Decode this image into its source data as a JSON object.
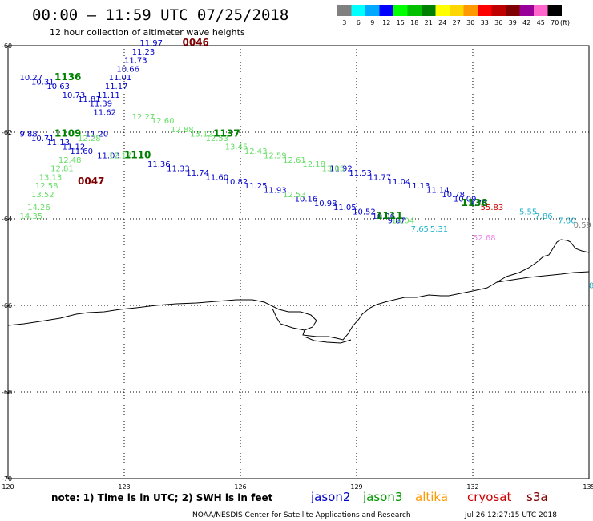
{
  "title": "00:00 – 11:59 UTC 07/25/2018",
  "subtitle": "12 hour collection of altimeter wave heights",
  "legend": {
    "unit": "(ft)",
    "bins": [
      {
        "label": "3",
        "color": "#808080"
      },
      {
        "label": "6",
        "color": "#00ffff"
      },
      {
        "label": "9",
        "color": "#00a8ff"
      },
      {
        "label": "12",
        "color": "#0000ff"
      },
      {
        "label": "15",
        "color": "#00ff00"
      },
      {
        "label": "18",
        "color": "#00c000"
      },
      {
        "label": "21",
        "color": "#008000"
      },
      {
        "label": "24",
        "color": "#ffff00"
      },
      {
        "label": "27",
        "color": "#ffd700"
      },
      {
        "label": "30",
        "color": "#ff9900"
      },
      {
        "label": "33",
        "color": "#ff0000"
      },
      {
        "label": "36",
        "color": "#c00000"
      },
      {
        "label": "39",
        "color": "#800000"
      },
      {
        "label": "42",
        "color": "#990099"
      },
      {
        "label": "45",
        "color": "#ff66cc"
      },
      {
        "label": "70",
        "color": "#000000"
      }
    ]
  },
  "axes": {
    "lat_ticks": [
      "-60",
      "-62",
      "-64",
      "-66",
      "-68",
      "-70"
    ],
    "lon_ticks": [
      "120",
      "123",
      "126",
      "129",
      "132",
      "135"
    ]
  },
  "note": "note: 1) Time is in UTC; 2) SWH is in feet",
  "satellites": [
    {
      "name": "jason2",
      "color": "#0000cc"
    },
    {
      "name": "jason3",
      "color": "#009900"
    },
    {
      "name": "altika",
      "color": "#ff9900"
    },
    {
      "name": "cryosat",
      "color": "#cc0000"
    },
    {
      "name": "s3a",
      "color": "#800000"
    }
  ],
  "credit": "NOAA/NESDIS Center for Satellite Applications and Research",
  "timestamp": "Jul 26 12:27:15 UTC 2018",
  "map_data": {
    "time_labels": [
      {
        "text": "0046",
        "lon": 124.5,
        "lat": -60.0,
        "color": "#800000"
      },
      {
        "text": "1136",
        "lon": 121.2,
        "lat": -60.8,
        "color": "#008000"
      },
      {
        "text": "1109",
        "lon": 121.2,
        "lat": -62.1,
        "color": "#008000"
      },
      {
        "text": "1137",
        "lon": 125.3,
        "lat": -62.1,
        "color": "#008000"
      },
      {
        "text": "1110",
        "lon": 123.0,
        "lat": -62.6,
        "color": "#008000"
      },
      {
        "text": "0047",
        "lon": 121.8,
        "lat": -63.2,
        "color": "#800000"
      },
      {
        "text": "1138",
        "lon": 131.7,
        "lat": -63.7,
        "color": "#008000"
      },
      {
        "text": "1111",
        "lon": 129.5,
        "lat": -64.0,
        "color": "#008000"
      }
    ],
    "tracks": [
      {
        "name": "jason2-a",
        "color": "#0000cc",
        "points": [
          {
            "v": "11.97",
            "lon": 123.4,
            "lat": -60.0
          },
          {
            "v": "11.23",
            "lon": 123.2,
            "lat": -60.2
          },
          {
            "v": "11.73",
            "lon": 123.0,
            "lat": -60.4
          },
          {
            "v": "10.66",
            "lon": 122.8,
            "lat": -60.6
          },
          {
            "v": "11.01",
            "lon": 122.6,
            "lat": -60.8
          },
          {
            "v": "11.17",
            "lon": 122.5,
            "lat": -61.0
          },
          {
            "v": "11.11",
            "lon": 122.3,
            "lat": -61.2
          },
          {
            "v": "10.27",
            "lon": 120.3,
            "lat": -60.8
          },
          {
            "v": "10.31",
            "lon": 120.6,
            "lat": -60.9
          },
          {
            "v": "10.63",
            "lon": 121.0,
            "lat": -61.0
          },
          {
            "v": "10.73",
            "lon": 121.4,
            "lat": -61.2
          },
          {
            "v": "11.81",
            "lon": 121.8,
            "lat": -61.3
          },
          {
            "v": "11.39",
            "lon": 122.1,
            "lat": -61.4
          },
          {
            "v": "11.62",
            "lon": 122.2,
            "lat": -61.6
          },
          {
            "v": "9.88",
            "lon": 120.3,
            "lat": -62.1
          },
          {
            "v": "10.71",
            "lon": 120.6,
            "lat": -62.2
          },
          {
            "v": "11.13",
            "lon": 121.0,
            "lat": -62.3
          },
          {
            "v": "11.12",
            "lon": 121.4,
            "lat": -62.4
          },
          {
            "v": "11.60",
            "lon": 121.6,
            "lat": -62.5
          },
          {
            "v": "11.20",
            "lon": 122.0,
            "lat": -62.1
          },
          {
            "v": "11.03",
            "lon": 122.3,
            "lat": -62.6
          },
          {
            "v": "11.36",
            "lon": 123.6,
            "lat": -62.8
          },
          {
            "v": "11.33",
            "lon": 124.1,
            "lat": -62.9
          },
          {
            "v": "11.74",
            "lon": 124.6,
            "lat": -63.0
          },
          {
            "v": "11.60",
            "lon": 125.1,
            "lat": -63.1
          },
          {
            "v": "10.82",
            "lon": 125.6,
            "lat": -63.2
          },
          {
            "v": "11.25",
            "lon": 126.1,
            "lat": -63.3
          },
          {
            "v": "11.93",
            "lon": 126.6,
            "lat": -63.4
          },
          {
            "v": "11.92",
            "lon": 128.3,
            "lat": -62.9
          },
          {
            "v": "11.53",
            "lon": 128.8,
            "lat": -63.0
          },
          {
            "v": "11.77",
            "lon": 129.3,
            "lat": -63.1
          },
          {
            "v": "11.04",
            "lon": 129.8,
            "lat": -63.2
          },
          {
            "v": "11.13",
            "lon": 130.3,
            "lat": -63.3
          },
          {
            "v": "11.14",
            "lon": 130.8,
            "lat": -63.4
          },
          {
            "v": "10.78",
            "lon": 131.2,
            "lat": -63.5
          },
          {
            "v": "10.09",
            "lon": 131.5,
            "lat": -63.6
          },
          {
            "v": "9.76",
            "lon": 131.9,
            "lat": -63.7
          },
          {
            "v": "10.16",
            "lon": 127.4,
            "lat": -63.6
          },
          {
            "v": "10.98",
            "lon": 127.9,
            "lat": -63.7
          },
          {
            "v": "11.05",
            "lon": 128.4,
            "lat": -63.8
          },
          {
            "v": "10.52",
            "lon": 128.9,
            "lat": -63.9
          },
          {
            "v": "10.06",
            "lon": 129.4,
            "lat": -64.0
          },
          {
            "v": "9.87",
            "lon": 129.8,
            "lat": -64.1
          }
        ]
      },
      {
        "name": "jason3-a",
        "color": "#66dd66",
        "points": [
          {
            "v": "12.27",
            "lon": 123.2,
            "lat": -61.7
          },
          {
            "v": "12.60",
            "lon": 123.7,
            "lat": -61.8
          },
          {
            "v": "12.88",
            "lon": 124.2,
            "lat": -62.0
          },
          {
            "v": "13.12",
            "lon": 124.7,
            "lat": -62.1
          },
          {
            "v": "12.53",
            "lon": 125.1,
            "lat": -62.2
          },
          {
            "v": "13.45",
            "lon": 125.6,
            "lat": -62.4
          },
          {
            "v": "12.43",
            "lon": 126.1,
            "lat": -62.5
          },
          {
            "v": "12.59",
            "lon": 126.6,
            "lat": -62.6
          },
          {
            "v": "12.61",
            "lon": 127.1,
            "lat": -62.7
          },
          {
            "v": "12.18",
            "lon": 127.6,
            "lat": -62.8
          },
          {
            "v": "13.05",
            "lon": 128.1,
            "lat": -62.9
          },
          {
            "v": "12.53",
            "lon": 127.1,
            "lat": -63.5
          },
          {
            "v": "12.28",
            "lon": 121.8,
            "lat": -62.2
          },
          {
            "v": "12.48",
            "lon": 121.3,
            "lat": -62.7
          },
          {
            "v": "12.81",
            "lon": 121.1,
            "lat": -62.9
          },
          {
            "v": "13.13",
            "lon": 120.8,
            "lat": -63.1
          },
          {
            "v": "12.58",
            "lon": 120.7,
            "lat": -63.3
          },
          {
            "v": "13.52",
            "lon": 120.6,
            "lat": -63.5
          },
          {
            "v": "14.26",
            "lon": 120.5,
            "lat": -63.8
          },
          {
            "v": "14.35",
            "lon": 120.3,
            "lat": -64.0
          },
          {
            "v": "12.17",
            "lon": 122.6,
            "lat": -62.6
          },
          {
            "v": "14.04",
            "lon": 129.9,
            "lat": -64.1
          }
        ]
      },
      {
        "name": "altika-a",
        "color": "#22b4cc",
        "points": [
          {
            "v": "7.65",
            "lon": 130.4,
            "lat": -64.3
          },
          {
            "v": "5.31",
            "lon": 130.9,
            "lat": -64.3
          },
          {
            "v": "5.55",
            "lon": 133.2,
            "lat": -63.9
          },
          {
            "v": "7.86",
            "lon": 133.6,
            "lat": -64.0
          },
          {
            "v": "7.60",
            "lon": 134.2,
            "lat": -64.1
          },
          {
            "v": "8.",
            "lon": 135.0,
            "lat": -65.6
          }
        ]
      },
      {
        "name": "misc",
        "color": "#808080",
        "points": [
          {
            "v": "0.59",
            "lon": 134.6,
            "lat": -64.2
          }
        ]
      },
      {
        "name": "cryosat-a",
        "color": "#cc0000",
        "points": [
          {
            "v": "55.83",
            "lon": 132.2,
            "lat": -63.8
          }
        ]
      },
      {
        "name": "s3a-a",
        "color": "#ee88ee",
        "points": [
          {
            "v": "52.68",
            "lon": 132.0,
            "lat": -64.5
          }
        ]
      }
    ]
  }
}
